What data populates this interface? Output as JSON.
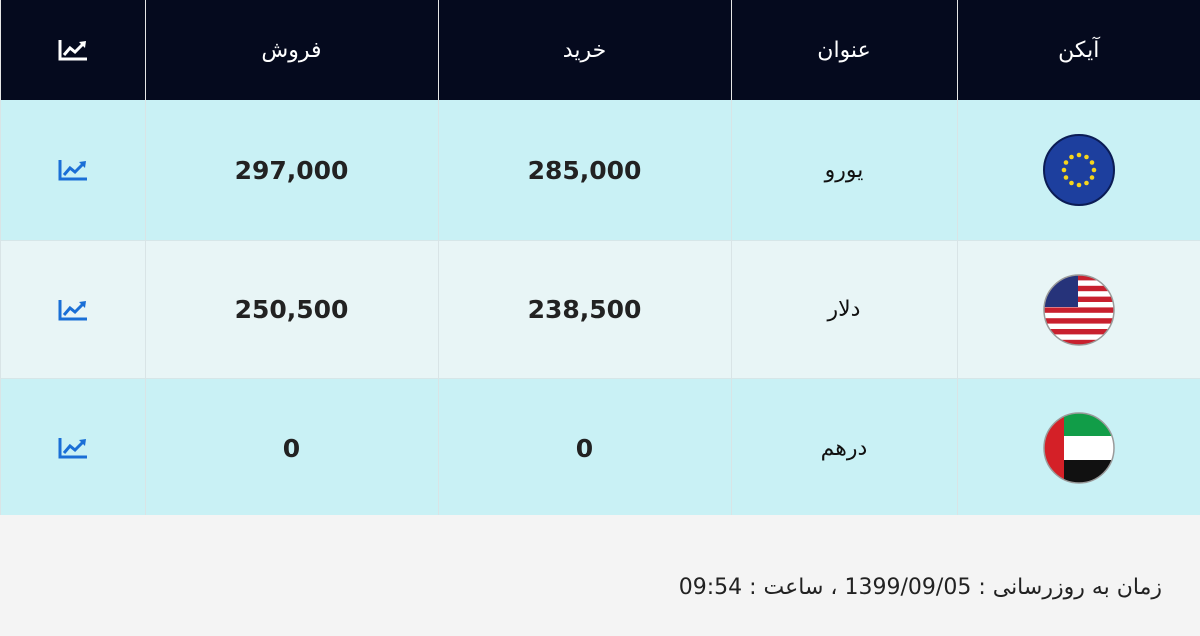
{
  "table": {
    "headers": [
      "آیکن",
      "عنوان",
      "خرید",
      "فروش"
    ],
    "rows": [
      [
        "یورو",
        "285,000",
        "297,000"
      ],
      [
        "دلار",
        "238,500",
        "250,500"
      ],
      [
        "درهم",
        "0",
        "0"
      ]
    ]
  },
  "footer": {
    "text": "زمان به روزرسانی : 1399/09/05 ، ساعت : 09:54"
  }
}
